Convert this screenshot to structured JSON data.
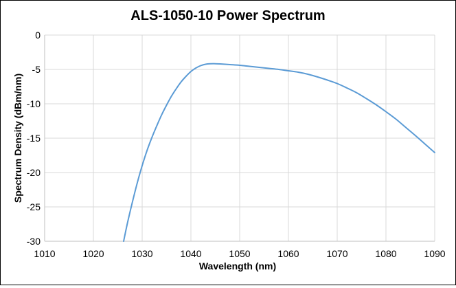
{
  "chart_data": {
    "type": "line",
    "title": "ALS-1050-10 Power Spectrum",
    "xlabel": "Wavelength (nm)",
    "ylabel": "Spectrum Density (dBm/nm)",
    "xlim": [
      1010,
      1090
    ],
    "ylim": [
      -30,
      0
    ],
    "xticks": [
      1010,
      1020,
      1030,
      1040,
      1050,
      1060,
      1070,
      1080,
      1090
    ],
    "yticks": [
      0,
      -5,
      -10,
      -15,
      -20,
      -25,
      -30
    ],
    "xtick_labels": [
      "1010",
      "1020",
      "1030",
      "1040",
      "1050",
      "1060",
      "1070",
      "1080",
      "1090"
    ],
    "ytick_labels": [
      "0",
      "-5",
      "-10",
      "-15",
      "-20",
      "-25",
      "-30"
    ],
    "grid": true,
    "line_color": "#5b9bd5",
    "series": [
      {
        "x": [
          1026.2,
          1027,
          1028,
          1029,
          1030,
          1031,
          1032,
          1033,
          1034,
          1035,
          1036,
          1037,
          1038,
          1039,
          1040,
          1041,
          1042,
          1043,
          1044,
          1045,
          1046,
          1048,
          1050,
          1052,
          1054,
          1056,
          1058,
          1060,
          1062,
          1064,
          1066,
          1068,
          1070,
          1072,
          1074,
          1076,
          1078,
          1080,
          1082,
          1084,
          1086,
          1088,
          1090
        ],
        "y": [
          -30,
          -27.3,
          -24.3,
          -21.5,
          -19.0,
          -16.8,
          -14.9,
          -13.2,
          -11.6,
          -10.2,
          -8.9,
          -7.8,
          -6.8,
          -6.0,
          -5.3,
          -4.8,
          -4.45,
          -4.25,
          -4.18,
          -4.17,
          -4.2,
          -4.3,
          -4.4,
          -4.55,
          -4.7,
          -4.85,
          -5.0,
          -5.2,
          -5.4,
          -5.7,
          -6.1,
          -6.55,
          -7.05,
          -7.7,
          -8.4,
          -9.25,
          -10.15,
          -11.15,
          -12.2,
          -13.4,
          -14.6,
          -15.85,
          -17.1
        ]
      }
    ]
  }
}
